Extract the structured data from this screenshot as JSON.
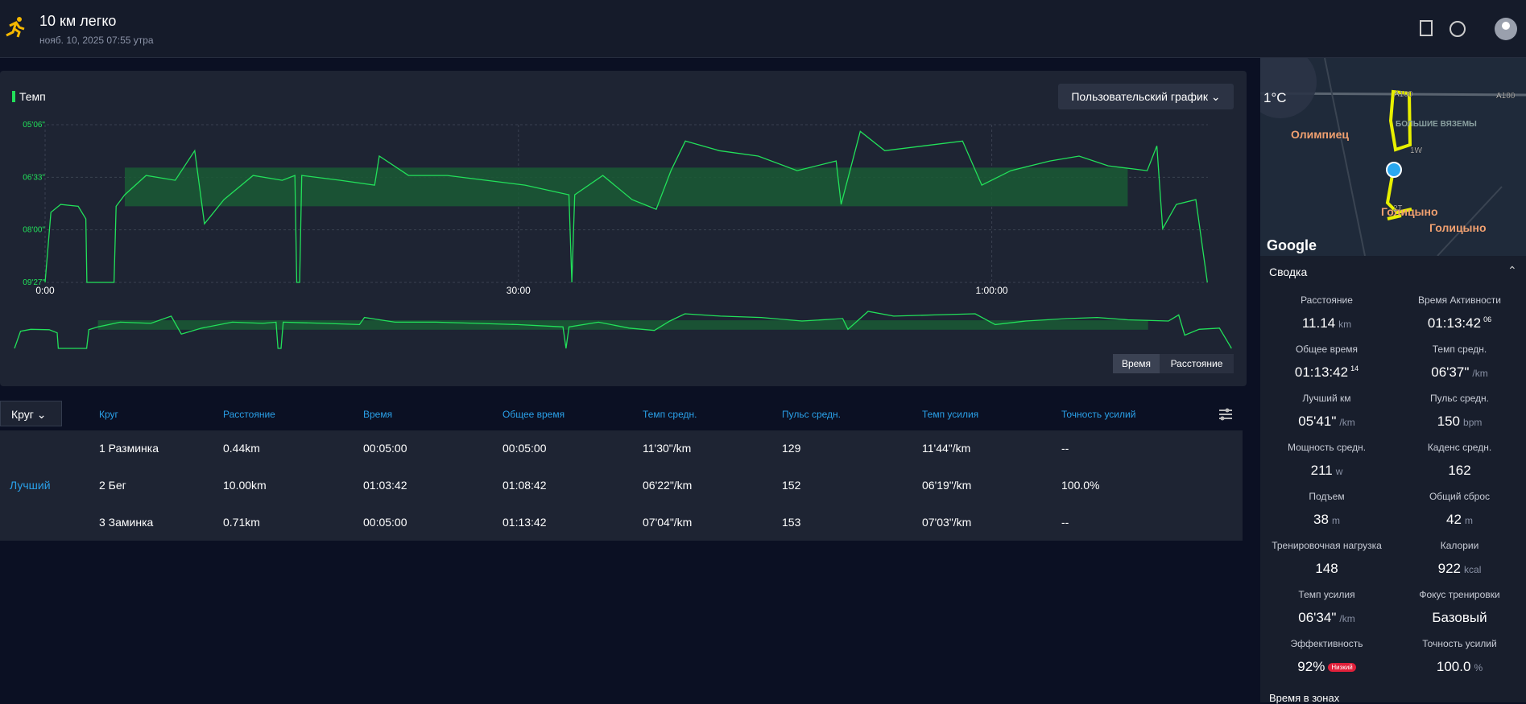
{
  "header": {
    "title": "10 км легко",
    "date": "нояб. 10, 2025 07:55 утра"
  },
  "chart_data": {
    "type": "line",
    "legend": "Темп",
    "dropdown": "Пользовательский график",
    "x": [
      0,
      22,
      59,
      126,
      155,
      159,
      262,
      270,
      303,
      384,
      495,
      569,
      606,
      680,
      791,
      902,
      950,
      957,
      968,
      976,
      1123,
      1253,
      1271,
      1382,
      1530,
      1678,
      1825,
      1992,
      2003,
      2014,
      2121,
      2232,
      2324,
      2380,
      2435,
      2564,
      2712,
      2860,
      3008,
      3027,
      3100,
      3193,
      3341,
      3489,
      3562,
      3673,
      3821,
      3932,
      4043,
      4191,
      4228,
      4250,
      4302,
      4376,
      4420
    ],
    "series": [
      {
        "name": "Темп",
        "color": "#22e05a",
        "values": [
          567,
          451,
          438,
          441,
          462,
          567,
          567,
          441,
          422,
          390,
          398,
          349,
          470,
          430,
          390,
          398,
          390,
          567,
          567,
          390,
          398,
          406,
          358,
          390,
          390,
          398,
          406,
          422,
          567,
          422,
          390,
          430,
          446,
          382,
          333,
          349,
          358,
          382,
          366,
          438,
          317,
          349,
          341,
          333,
          406,
          382,
          366,
          358,
          374,
          382,
          341,
          478,
          438,
          430,
          567
        ]
      }
    ],
    "zone": {
      "from": 377,
      "to": 441,
      "start": 303,
      "end": 4117,
      "color": "#1a5a35"
    },
    "xlim": [
      0,
      4422
    ],
    "ylim": [
      306,
      567
    ],
    "y_inverted": true,
    "grid": true,
    "xticks": [
      {
        "value": 0,
        "label": "0:00"
      },
      {
        "value": 1800,
        "label": "30:00"
      },
      {
        "value": 3600,
        "label": "1:00:00"
      }
    ],
    "yticks": [
      {
        "value": 306,
        "label": "05'06\""
      },
      {
        "value": 393,
        "label": "06'33\""
      },
      {
        "value": 480,
        "label": "08'00\""
      },
      {
        "value": 567,
        "label": "09'27\""
      }
    ],
    "toggles": [
      "Время",
      "Расстояние"
    ],
    "active_toggle": 0
  },
  "table": {
    "dropdown": "Круг",
    "best_label": "Лучший",
    "best_row": 1,
    "columns": [
      "Круг",
      "Расстояние",
      "Время",
      "Общее время",
      "Темп средн.",
      "Пульс средн.",
      "Темп усилия",
      "Точность усилий"
    ],
    "rows": [
      [
        "1 Разминка",
        "0.44km",
        "00:05:00",
        "00:05:00",
        "11'30\"/km",
        "129",
        "11'44\"/km",
        "--"
      ],
      [
        "2 Бег",
        "10.00km",
        "01:03:42",
        "01:08:42",
        "06'22\"/km",
        "152",
        "06'19\"/km",
        "100.0%"
      ],
      [
        "3 Заминка",
        "0.71km",
        "00:05:00",
        "01:13:42",
        "07'04\"/km",
        "153",
        "07'03\"/km",
        "--"
      ]
    ]
  },
  "map": {
    "temperature": "1°C",
    "places": [
      "Олимпиец",
      "Голицыно",
      "Голицыно",
      "БОЛЬШИЕ ВЯЗЕМЫ"
    ],
    "roads": [
      "A100",
      "A100",
      "1W",
      "2T"
    ],
    "logo": "Google"
  },
  "summary": {
    "title": "Сводка",
    "next_section": "Время в зонах",
    "items": [
      {
        "label": "Расстояние",
        "value": "11.14",
        "unit": "km"
      },
      {
        "label": "Время Активности",
        "value": "01:13:42",
        "sup": "06"
      },
      {
        "label": "Общее время",
        "value": "01:13:42",
        "sup": "14"
      },
      {
        "label": "Темп средн.",
        "value": "06'37\"",
        "unit": "/km"
      },
      {
        "label": "Лучший км",
        "value": "05'41\"",
        "unit": "/km"
      },
      {
        "label": "Пульс средн.",
        "value": "150",
        "unit": "bpm"
      },
      {
        "label": "Мощность средн.",
        "value": "211",
        "unit": "w"
      },
      {
        "label": "Каденс средн.",
        "value": "162"
      },
      {
        "label": "Подъем",
        "value": "38",
        "unit": "m"
      },
      {
        "label": "Общий сброс",
        "value": "42",
        "unit": "m"
      },
      {
        "label": "Тренировочная нагрузка",
        "value": "148"
      },
      {
        "label": "Калории",
        "value": "922",
        "unit": "kcal"
      },
      {
        "label": "Темп усилия",
        "value": "06'34\"",
        "unit": "/km"
      },
      {
        "label": "Фокус тренировки",
        "value": "Базовый"
      },
      {
        "label": "Эффективность",
        "value": "92%",
        "badge": "Низкий"
      },
      {
        "label": "Точность усилий",
        "value": "100.0",
        "unit": "%"
      }
    ]
  }
}
